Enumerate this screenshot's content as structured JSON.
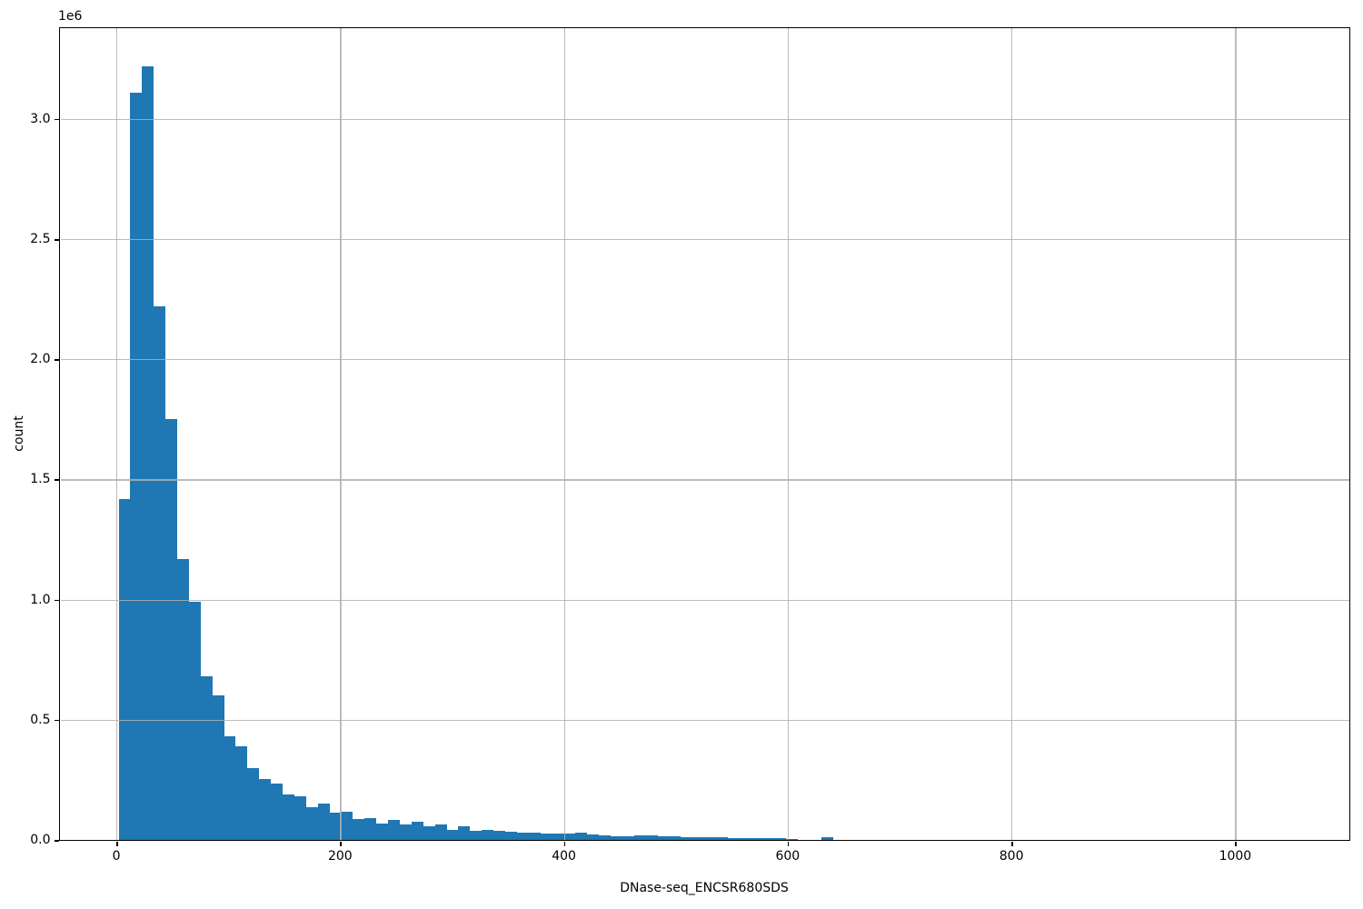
{
  "chart_data": {
    "type": "bar",
    "subtype": "histogram",
    "title": "",
    "xlabel": "DNase-seq_ENCSR680SDS",
    "ylabel": "count",
    "y_offset_label": "1e6",
    "bar_color": "#1f77b4",
    "grid_color": "#b0b0b0",
    "spine_color": "#000000",
    "background_color": "#ffffff",
    "grid": true,
    "legend": null,
    "xlim": [
      -50,
      1102
    ],
    "ylim": [
      0,
      3378000
    ],
    "bin_start": 2,
    "bin_width": 10.47,
    "counts": [
      1420000,
      3110000,
      3220000,
      2220000,
      1750000,
      1170000,
      990000,
      680000,
      600000,
      430000,
      390000,
      300000,
      252000,
      235000,
      190000,
      181000,
      136000,
      151000,
      113000,
      118000,
      88000,
      91000,
      69000,
      85000,
      66000,
      76000,
      55000,
      64000,
      43000,
      58000,
      36000,
      43000,
      38000,
      33000,
      30000,
      30000,
      28000,
      26000,
      26000,
      30000,
      22000,
      19000,
      17000,
      17000,
      20000,
      20000,
      15000,
      15000,
      11000,
      11000,
      11000,
      11000,
      8000,
      8000,
      8000,
      8000,
      6000,
      4000,
      0,
      0,
      13000
    ],
    "xticks": {
      "values": [
        0,
        200,
        400,
        600,
        800,
        1000
      ],
      "labels": [
        "0",
        "200",
        "400",
        "600",
        "800",
        "1000"
      ]
    },
    "yticks": {
      "values": [
        0,
        500000,
        1000000,
        1500000,
        2000000,
        2500000,
        3000000
      ],
      "labels": [
        "0.0",
        "0.5",
        "1.0",
        "1.5",
        "2.0",
        "2.5",
        "3.0"
      ]
    }
  }
}
